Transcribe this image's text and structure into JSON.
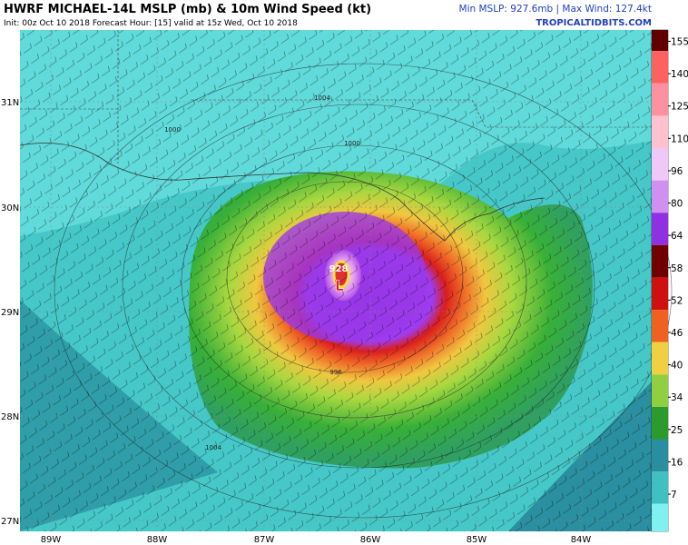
{
  "header": {
    "title": "HWRF MICHAEL-14L MSLP (mb) & 10m Wind Speed (kt)",
    "subtitle": "Init: 00z Oct 10 2018   Forecast Hour: [15]   valid at 15z Wed, Oct 10 2018",
    "stats": "Min MSLP: 927.6mb | Max Wind: 127.4kt",
    "site": "TROPICALTIDBITS.COM"
  },
  "colorbar": {
    "ticks": [
      155,
      140,
      125,
      110,
      96,
      80,
      64,
      58,
      52,
      46,
      40,
      34,
      25,
      16,
      7
    ]
  },
  "map": {
    "lat_labels": [
      "31N",
      "30N",
      "29N",
      "28N",
      "27N"
    ],
    "lon_labels": [
      "89W",
      "88W",
      "87W",
      "86W",
      "85W",
      "84W"
    ],
    "contour_labels": [
      "1004",
      "1000",
      "1000",
      "1004",
      "996",
      "928"
    ],
    "low_marker": "L"
  }
}
